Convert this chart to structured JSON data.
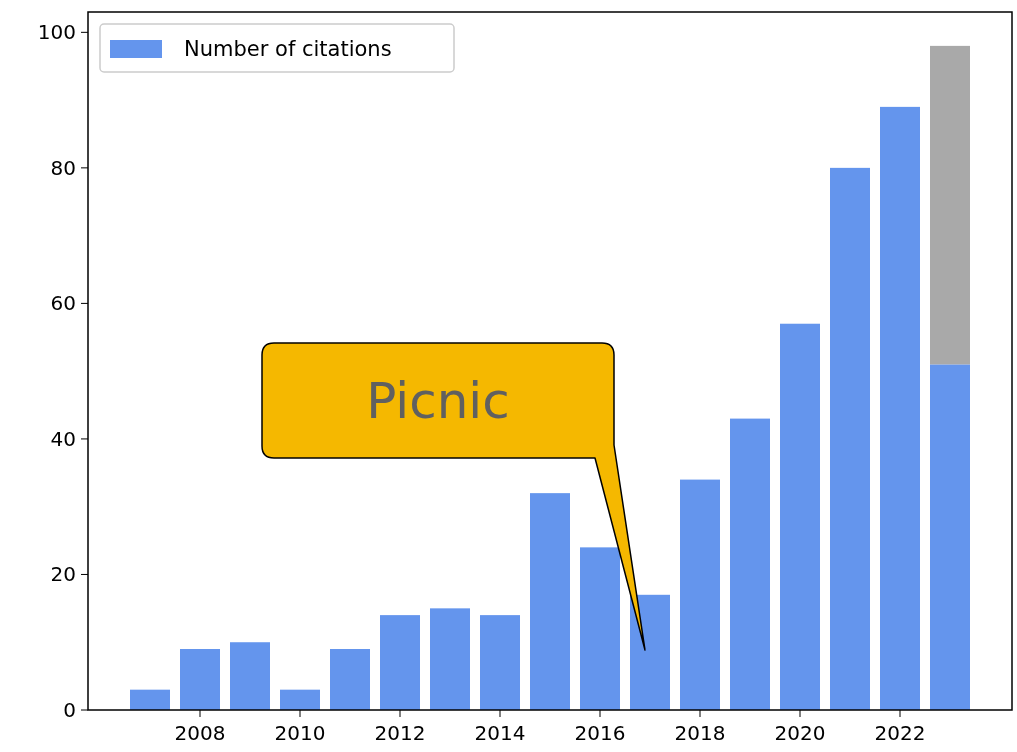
{
  "chart_data": {
    "type": "bar",
    "stacked": true,
    "x": [
      2007,
      2008,
      2009,
      2010,
      2011,
      2012,
      2013,
      2014,
      2015,
      2016,
      2017,
      2018,
      2019,
      2020,
      2021,
      2022,
      2023
    ],
    "series": [
      {
        "name": "Number of citations",
        "color": "#6495ed",
        "values": [
          3,
          9,
          10,
          3,
          9,
          14,
          15,
          14,
          32,
          24,
          17,
          34,
          43,
          57,
          80,
          89,
          51
        ]
      },
      {
        "color": "#a9a9a9",
        "values": [
          null,
          null,
          null,
          null,
          null,
          null,
          null,
          null,
          null,
          null,
          null,
          null,
          null,
          null,
          null,
          null,
          47
        ]
      }
    ],
    "xlim": [
      2005.76,
      2024.24
    ],
    "xticks": [
      2008,
      2010,
      2012,
      2014,
      2016,
      2018,
      2020,
      2022
    ],
    "ylim": [
      0,
      103
    ],
    "yticks": [
      0,
      20,
      40,
      60,
      80,
      100
    ],
    "grid": false,
    "legend": "top left",
    "annotations": [
      "Picnic"
    ]
  }
}
